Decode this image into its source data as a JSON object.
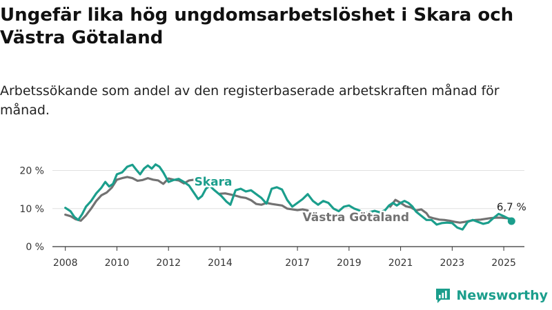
{
  "title": "Ungefär lika hög ungdomsarbetslöshet i Skara och Västra Götaland",
  "subtitle": "Arbetssökande som andel av den registerbaserade arbetskraften månad för månad.",
  "brand": "Newsworthy",
  "colors": {
    "skara": "#1b9e8c",
    "vg": "#727272",
    "grid": "#e0e0e0",
    "axis": "#333333",
    "brand": "#1b9e8c"
  },
  "chart_data": {
    "type": "line",
    "title": "Ungefär lika hög ungdomsarbetslöshet i Skara och Västra Götaland",
    "subtitle": "Arbetssökande som andel av den registerbaserade arbetskraften månad för månad.",
    "xlim": [
      2007.5,
      2025.8
    ],
    "ylim": [
      0,
      21
    ],
    "x_ticks": [
      2008,
      2010,
      2012,
      2014,
      2017,
      2019,
      2021,
      2023,
      2025
    ],
    "y_ticks": [
      0,
      10,
      20
    ],
    "y_tick_labels": [
      "0 %",
      "10 %",
      "20 %"
    ],
    "grid": "horizontal",
    "legend": "direct labels on lines",
    "series": [
      {
        "name": "Skara",
        "key": "skara",
        "points": [
          [
            2008.0,
            10.2
          ],
          [
            2008.2,
            9.3
          ],
          [
            2008.35,
            7.8
          ],
          [
            2008.5,
            7.0
          ],
          [
            2008.65,
            8.5
          ],
          [
            2008.8,
            10.5
          ],
          [
            2009.0,
            12.0
          ],
          [
            2009.2,
            14.0
          ],
          [
            2009.4,
            15.5
          ],
          [
            2009.55,
            17.0
          ],
          [
            2009.7,
            15.8
          ],
          [
            2009.85,
            16.5
          ],
          [
            2010.0,
            19.0
          ],
          [
            2010.2,
            19.5
          ],
          [
            2010.4,
            21.0
          ],
          [
            2010.6,
            21.5
          ],
          [
            2010.75,
            20.2
          ],
          [
            2010.9,
            19.0
          ],
          [
            2011.05,
            20.5
          ],
          [
            2011.2,
            21.3
          ],
          [
            2011.35,
            20.5
          ],
          [
            2011.5,
            21.6
          ],
          [
            2011.65,
            21.0
          ],
          [
            2011.8,
            19.5
          ],
          [
            2012.0,
            17.0
          ],
          [
            2012.2,
            17.5
          ],
          [
            2012.4,
            17.8
          ],
          [
            2012.6,
            17.0
          ],
          [
            2012.8,
            16.0
          ],
          [
            2013.0,
            14.0
          ],
          [
            2013.15,
            12.5
          ],
          [
            2013.3,
            13.3
          ],
          [
            2013.45,
            15.2
          ],
          [
            2013.6,
            16.0
          ],
          [
            2013.75,
            15.0
          ],
          [
            2014.05,
            13.3
          ],
          [
            2014.25,
            11.8
          ],
          [
            2014.4,
            11.0
          ],
          [
            2014.6,
            14.8
          ],
          [
            2014.8,
            15.2
          ],
          [
            2015.0,
            14.5
          ],
          [
            2015.2,
            14.8
          ],
          [
            2015.4,
            13.8
          ],
          [
            2015.6,
            12.8
          ],
          [
            2015.8,
            11.3
          ],
          [
            2016.0,
            15.2
          ],
          [
            2016.2,
            15.6
          ],
          [
            2016.4,
            15.0
          ],
          [
            2016.6,
            12.3
          ],
          [
            2016.8,
            10.5
          ],
          [
            2017.0,
            11.5
          ],
          [
            2017.2,
            12.5
          ],
          [
            2017.4,
            13.8
          ],
          [
            2017.6,
            12.0
          ],
          [
            2017.8,
            11.0
          ],
          [
            2018.0,
            12.0
          ],
          [
            2018.2,
            11.5
          ],
          [
            2018.4,
            10.0
          ],
          [
            2018.6,
            9.3
          ],
          [
            2018.8,
            10.5
          ],
          [
            2019.0,
            10.8
          ],
          [
            2019.2,
            10.0
          ],
          [
            2019.4,
            9.5
          ],
          [
            2019.6,
            8.8
          ],
          [
            2020.0,
            9.4
          ],
          [
            2020.2,
            9.0
          ],
          [
            2020.4,
            9.6
          ],
          [
            2020.55,
            10.8
          ],
          [
            2020.7,
            11.5
          ],
          [
            2020.85,
            10.8
          ],
          [
            2021.0,
            11.5
          ],
          [
            2021.15,
            12.0
          ],
          [
            2021.3,
            11.5
          ],
          [
            2021.45,
            10.6
          ],
          [
            2021.6,
            9.2
          ],
          [
            2022.0,
            7.0
          ],
          [
            2022.2,
            7.0
          ],
          [
            2022.4,
            5.8
          ],
          [
            2022.6,
            6.2
          ],
          [
            2022.8,
            6.3
          ],
          [
            2023.0,
            6.2
          ],
          [
            2023.2,
            5.0
          ],
          [
            2023.4,
            4.5
          ],
          [
            2023.6,
            6.5
          ],
          [
            2023.8,
            7.0
          ],
          [
            2024.0,
            6.5
          ],
          [
            2024.2,
            6.0
          ],
          [
            2024.4,
            6.3
          ],
          [
            2024.6,
            7.5
          ],
          [
            2024.8,
            8.6
          ],
          [
            2025.0,
            8.0
          ],
          [
            2025.2,
            7.3
          ],
          [
            2025.3,
            6.7
          ]
        ]
      },
      {
        "name": "Västra Götaland",
        "key": "vg",
        "points": [
          [
            2008.0,
            8.4
          ],
          [
            2008.2,
            8.0
          ],
          [
            2008.4,
            7.2
          ],
          [
            2008.6,
            6.8
          ],
          [
            2008.8,
            8.2
          ],
          [
            2009.0,
            10.0
          ],
          [
            2009.2,
            12.0
          ],
          [
            2009.4,
            13.5
          ],
          [
            2009.6,
            14.2
          ],
          [
            2009.8,
            15.5
          ],
          [
            2010.0,
            17.6
          ],
          [
            2010.2,
            18.0
          ],
          [
            2010.4,
            18.3
          ],
          [
            2010.6,
            18.0
          ],
          [
            2010.8,
            17.3
          ],
          [
            2011.0,
            17.5
          ],
          [
            2011.2,
            18.0
          ],
          [
            2011.4,
            17.6
          ],
          [
            2011.6,
            17.4
          ],
          [
            2011.8,
            16.5
          ],
          [
            2012.0,
            17.9
          ],
          [
            2012.2,
            17.6
          ],
          [
            2012.4,
            17.4
          ],
          [
            2012.6,
            16.6
          ],
          [
            2012.8,
            17.4
          ],
          [
            2013.0,
            17.6
          ],
          [
            2014.0,
            13.9
          ],
          [
            2014.2,
            14.0
          ],
          [
            2014.4,
            13.7
          ],
          [
            2014.6,
            13.4
          ],
          [
            2014.8,
            13.0
          ],
          [
            2015.0,
            12.8
          ],
          [
            2015.2,
            12.2
          ],
          [
            2015.4,
            11.2
          ],
          [
            2015.6,
            11.0
          ],
          [
            2015.8,
            11.5
          ],
          [
            2016.0,
            11.2
          ],
          [
            2016.2,
            11.0
          ],
          [
            2016.4,
            10.8
          ],
          [
            2016.6,
            10.0
          ],
          [
            2016.8,
            9.8
          ],
          [
            2017.0,
            9.6
          ],
          [
            2017.2,
            9.8
          ],
          [
            2017.4,
            9.5
          ],
          [
            2020.6,
            10.5
          ],
          [
            2020.8,
            12.3
          ],
          [
            2021.0,
            11.5
          ],
          [
            2021.2,
            10.6
          ],
          [
            2021.4,
            10.3
          ],
          [
            2021.6,
            9.5
          ],
          [
            2021.8,
            9.8
          ],
          [
            2022.0,
            8.8
          ],
          [
            2022.1,
            7.8
          ],
          [
            2022.3,
            7.4
          ],
          [
            2022.5,
            7.1
          ],
          [
            2022.7,
            7.0
          ],
          [
            2022.9,
            6.8
          ],
          [
            2023.1,
            6.5
          ],
          [
            2023.3,
            6.3
          ],
          [
            2023.5,
            6.5
          ],
          [
            2023.7,
            6.8
          ],
          [
            2023.9,
            7.0
          ],
          [
            2024.1,
            7.1
          ],
          [
            2024.3,
            7.3
          ],
          [
            2024.5,
            7.5
          ],
          [
            2024.7,
            7.6
          ],
          [
            2024.9,
            7.6
          ],
          [
            2025.1,
            7.5
          ],
          [
            2025.3,
            7.3
          ]
        ]
      }
    ],
    "labels": {
      "skara": "Skara",
      "vg": "Västra Götaland",
      "last_value": "6,7 %"
    }
  }
}
